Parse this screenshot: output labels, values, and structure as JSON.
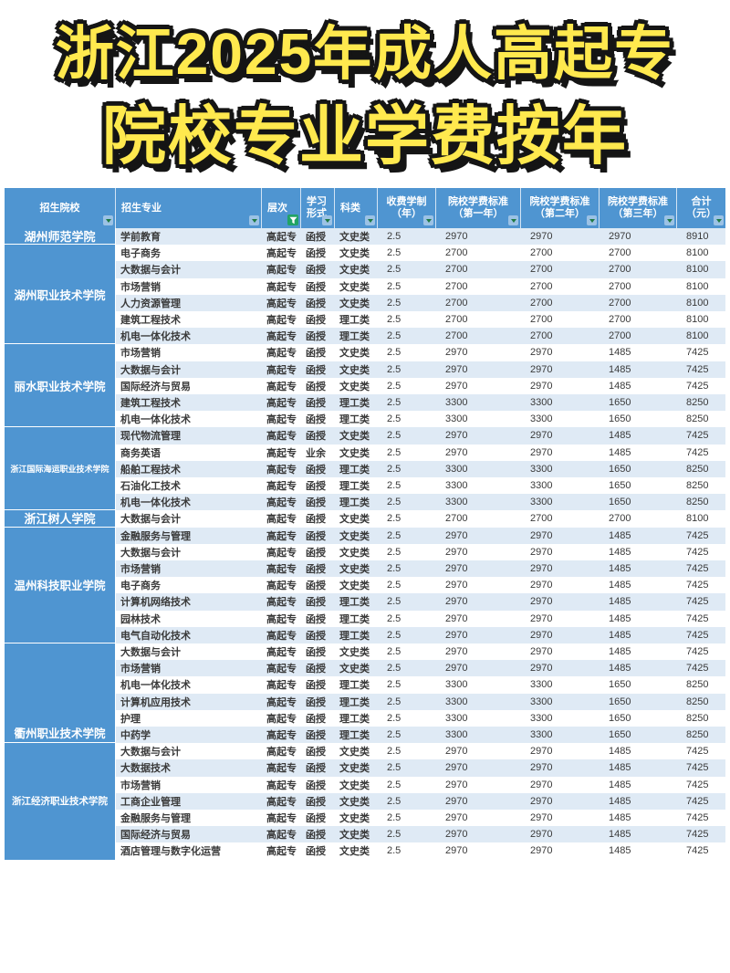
{
  "title": {
    "line1": "浙江2025年成人高起专",
    "line2": "院校专业学费按年"
  },
  "colors": {
    "header_blue": "#4F95D1",
    "row_stripe_blue": "#DFEAF5",
    "filter_chip_blue": "#9CC2E5",
    "filter_arrow_green": "#1F7A44",
    "funnel_green": "#21A366",
    "title_yellow": "#FFE94E",
    "title_outline": "#151515",
    "text_dark": "#3A3A3A"
  },
  "table": {
    "headers": [
      {
        "label": "招生院校",
        "filter": "dropdown"
      },
      {
        "label": "招生专业",
        "filter": "dropdown"
      },
      {
        "label": "层次",
        "filter": "funnel"
      },
      {
        "label": "学习\n形式",
        "filter": "dropdown"
      },
      {
        "label": "科类",
        "filter": "dropdown"
      },
      {
        "label": "收费学制\n（年）",
        "filter": "dropdown"
      },
      {
        "label": "院校学费标准\n（第一年）",
        "filter": "dropdown"
      },
      {
        "label": "院校学费标准\n（第二年）",
        "filter": "dropdown"
      },
      {
        "label": "院校学费标准\n（第三年）",
        "filter": "dropdown"
      },
      {
        "label": "合计\n（元）",
        "filter": "dropdown"
      }
    ],
    "groups": [
      {
        "college": "湖州师范学院",
        "rows": [
          [
            "学前教育",
            "高起专",
            "函授",
            "文史类",
            "2.5",
            "2970",
            "2970",
            "2970",
            "8910"
          ]
        ]
      },
      {
        "college": "湖州职业技术学院",
        "rows": [
          [
            "电子商务",
            "高起专",
            "函授",
            "文史类",
            "2.5",
            "2700",
            "2700",
            "2700",
            "8100"
          ],
          [
            "大数据与会计",
            "高起专",
            "函授",
            "文史类",
            "2.5",
            "2700",
            "2700",
            "2700",
            "8100"
          ],
          [
            "市场营销",
            "高起专",
            "函授",
            "文史类",
            "2.5",
            "2700",
            "2700",
            "2700",
            "8100"
          ],
          [
            "人力资源管理",
            "高起专",
            "函授",
            "文史类",
            "2.5",
            "2700",
            "2700",
            "2700",
            "8100"
          ],
          [
            "建筑工程技术",
            "高起专",
            "函授",
            "理工类",
            "2.5",
            "2700",
            "2700",
            "2700",
            "8100"
          ],
          [
            "机电一体化技术",
            "高起专",
            "函授",
            "理工类",
            "2.5",
            "2700",
            "2700",
            "2700",
            "8100"
          ]
        ]
      },
      {
        "college": "丽水职业技术学院",
        "rows": [
          [
            "市场营销",
            "高起专",
            "函授",
            "文史类",
            "2.5",
            "2970",
            "2970",
            "1485",
            "7425"
          ],
          [
            "大数据与会计",
            "高起专",
            "函授",
            "文史类",
            "2.5",
            "2970",
            "2970",
            "1485",
            "7425"
          ],
          [
            "国际经济与贸易",
            "高起专",
            "函授",
            "文史类",
            "2.5",
            "2970",
            "2970",
            "1485",
            "7425"
          ],
          [
            "建筑工程技术",
            "高起专",
            "函授",
            "理工类",
            "2.5",
            "3300",
            "3300",
            "1650",
            "8250"
          ],
          [
            "机电一体化技术",
            "高起专",
            "函授",
            "理工类",
            "2.5",
            "3300",
            "3300",
            "1650",
            "8250"
          ]
        ]
      },
      {
        "college": "浙江国际海运职业技术学院",
        "rows": [
          [
            "现代物流管理",
            "高起专",
            "函授",
            "文史类",
            "2.5",
            "2970",
            "2970",
            "1485",
            "7425"
          ],
          [
            "商务英语",
            "高起专",
            "业余",
            "文史类",
            "2.5",
            "2970",
            "2970",
            "1485",
            "7425"
          ],
          [
            "船舶工程技术",
            "高起专",
            "函授",
            "理工类",
            "2.5",
            "3300",
            "3300",
            "1650",
            "8250"
          ],
          [
            "石油化工技术",
            "高起专",
            "函授",
            "理工类",
            "2.5",
            "3300",
            "3300",
            "1650",
            "8250"
          ],
          [
            "机电一体化技术",
            "高起专",
            "函授",
            "理工类",
            "2.5",
            "3300",
            "3300",
            "1650",
            "8250"
          ]
        ]
      },
      {
        "college": "浙江树人学院",
        "rows": [
          [
            "大数据与会计",
            "高起专",
            "函授",
            "文史类",
            "2.5",
            "2700",
            "2700",
            "2700",
            "8100"
          ]
        ]
      },
      {
        "college": "温州科技职业学院",
        "rows": [
          [
            "金融服务与管理",
            "高起专",
            "函授",
            "文史类",
            "2.5",
            "2970",
            "2970",
            "1485",
            "7425"
          ],
          [
            "大数据与会计",
            "高起专",
            "函授",
            "文史类",
            "2.5",
            "2970",
            "2970",
            "1485",
            "7425"
          ],
          [
            "市场营销",
            "高起专",
            "函授",
            "文史类",
            "2.5",
            "2970",
            "2970",
            "1485",
            "7425"
          ],
          [
            "电子商务",
            "高起专",
            "函授",
            "文史类",
            "2.5",
            "2970",
            "2970",
            "1485",
            "7425"
          ],
          [
            "计算机网络技术",
            "高起专",
            "函授",
            "理工类",
            "2.5",
            "2970",
            "2970",
            "1485",
            "7425"
          ],
          [
            "园林技术",
            "高起专",
            "函授",
            "理工类",
            "2.5",
            "2970",
            "2970",
            "1485",
            "7425"
          ],
          [
            "电气自动化技术",
            "高起专",
            "函授",
            "理工类",
            "2.5",
            "2970",
            "2970",
            "1485",
            "7425"
          ]
        ]
      },
      {
        "college": "衢州职业技术学院",
        "valign": "bottom",
        "rows": [
          [
            "大数据与会计",
            "高起专",
            "函授",
            "文史类",
            "2.5",
            "2970",
            "2970",
            "1485",
            "7425"
          ],
          [
            "市场营销",
            "高起专",
            "函授",
            "文史类",
            "2.5",
            "2970",
            "2970",
            "1485",
            "7425"
          ],
          [
            "机电一体化技术",
            "高起专",
            "函授",
            "理工类",
            "2.5",
            "3300",
            "3300",
            "1650",
            "8250"
          ],
          [
            "计算机应用技术",
            "高起专",
            "函授",
            "理工类",
            "2.5",
            "3300",
            "3300",
            "1650",
            "8250"
          ],
          [
            "护理",
            "高起专",
            "函授",
            "理工类",
            "2.5",
            "3300",
            "3300",
            "1650",
            "8250"
          ],
          [
            "中药学",
            "高起专",
            "函授",
            "理工类",
            "2.5",
            "3300",
            "3300",
            "1650",
            "8250"
          ]
        ]
      },
      {
        "college": "浙江经济职业技术学院",
        "rows": [
          [
            "大数据与会计",
            "高起专",
            "函授",
            "文史类",
            "2.5",
            "2970",
            "2970",
            "1485",
            "7425"
          ],
          [
            "大数据技术",
            "高起专",
            "函授",
            "文史类",
            "2.5",
            "2970",
            "2970",
            "1485",
            "7425"
          ],
          [
            "市场营销",
            "高起专",
            "函授",
            "文史类",
            "2.5",
            "2970",
            "2970",
            "1485",
            "7425"
          ],
          [
            "工商企业管理",
            "高起专",
            "函授",
            "文史类",
            "2.5",
            "2970",
            "2970",
            "1485",
            "7425"
          ],
          [
            "金融服务与管理",
            "高起专",
            "函授",
            "文史类",
            "2.5",
            "2970",
            "2970",
            "1485",
            "7425"
          ],
          [
            "国际经济与贸易",
            "高起专",
            "函授",
            "文史类",
            "2.5",
            "2970",
            "2970",
            "1485",
            "7425"
          ],
          [
            "酒店管理与数字化运营",
            "高起专",
            "函授",
            "文史类",
            "2.5",
            "2970",
            "2970",
            "1485",
            "7425"
          ]
        ]
      }
    ]
  }
}
